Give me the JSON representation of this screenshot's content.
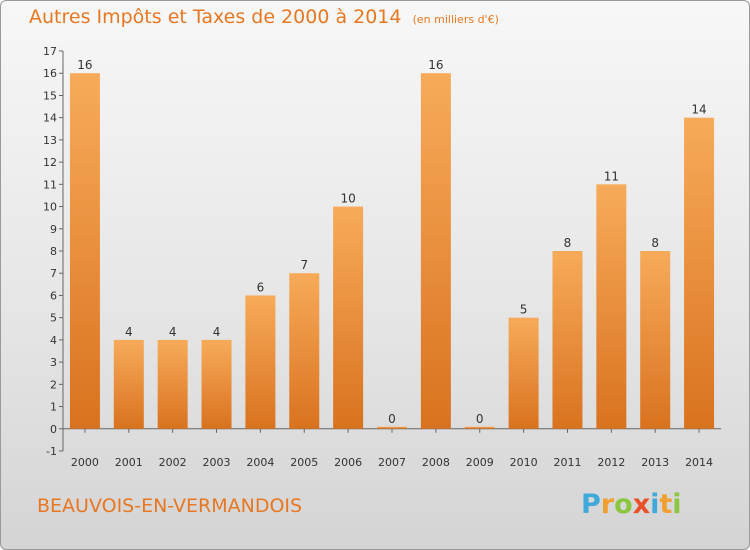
{
  "title": "Autres Impôts et Taxes de 2000 à 2014",
  "subtitle": "(en milliers d'€)",
  "place_name": "BEAUVOIS-EN-VERMANDOIS",
  "logo": {
    "letters": [
      "P",
      "r",
      "o",
      "x",
      "i",
      "t",
      "i"
    ],
    "colors": [
      "#3fa9d9",
      "#f0a030",
      "#8cc63f",
      "#e8502a",
      "#3fa9d9",
      "#f0a030",
      "#8cc63f"
    ]
  },
  "colors": {
    "bar": "#e87f2a",
    "bar_light": "#f7ab5a",
    "text": "#333333",
    "accent": "#e87722"
  },
  "chart_data": {
    "type": "bar",
    "categories": [
      "2000",
      "2001",
      "2002",
      "2003",
      "2004",
      "2005",
      "2006",
      "2007",
      "2008",
      "2009",
      "2010",
      "2011",
      "2012",
      "2013",
      "2014"
    ],
    "values": [
      16,
      4,
      4,
      4,
      6,
      7,
      10,
      0,
      16,
      0,
      5,
      8,
      11,
      8,
      14
    ],
    "data_labels": [
      "16",
      "4",
      "4",
      "4",
      "6",
      "7",
      "10",
      "0",
      "16",
      "0",
      "5",
      "8",
      "11",
      "8",
      "14"
    ],
    "yticks": [
      "-1",
      "0",
      "1",
      "2",
      "3",
      "4",
      "5",
      "6",
      "7",
      "8",
      "9",
      "10",
      "11",
      "12",
      "13",
      "14",
      "15",
      "16",
      "17"
    ],
    "ylim": [
      -1,
      17
    ],
    "grid": false
  }
}
